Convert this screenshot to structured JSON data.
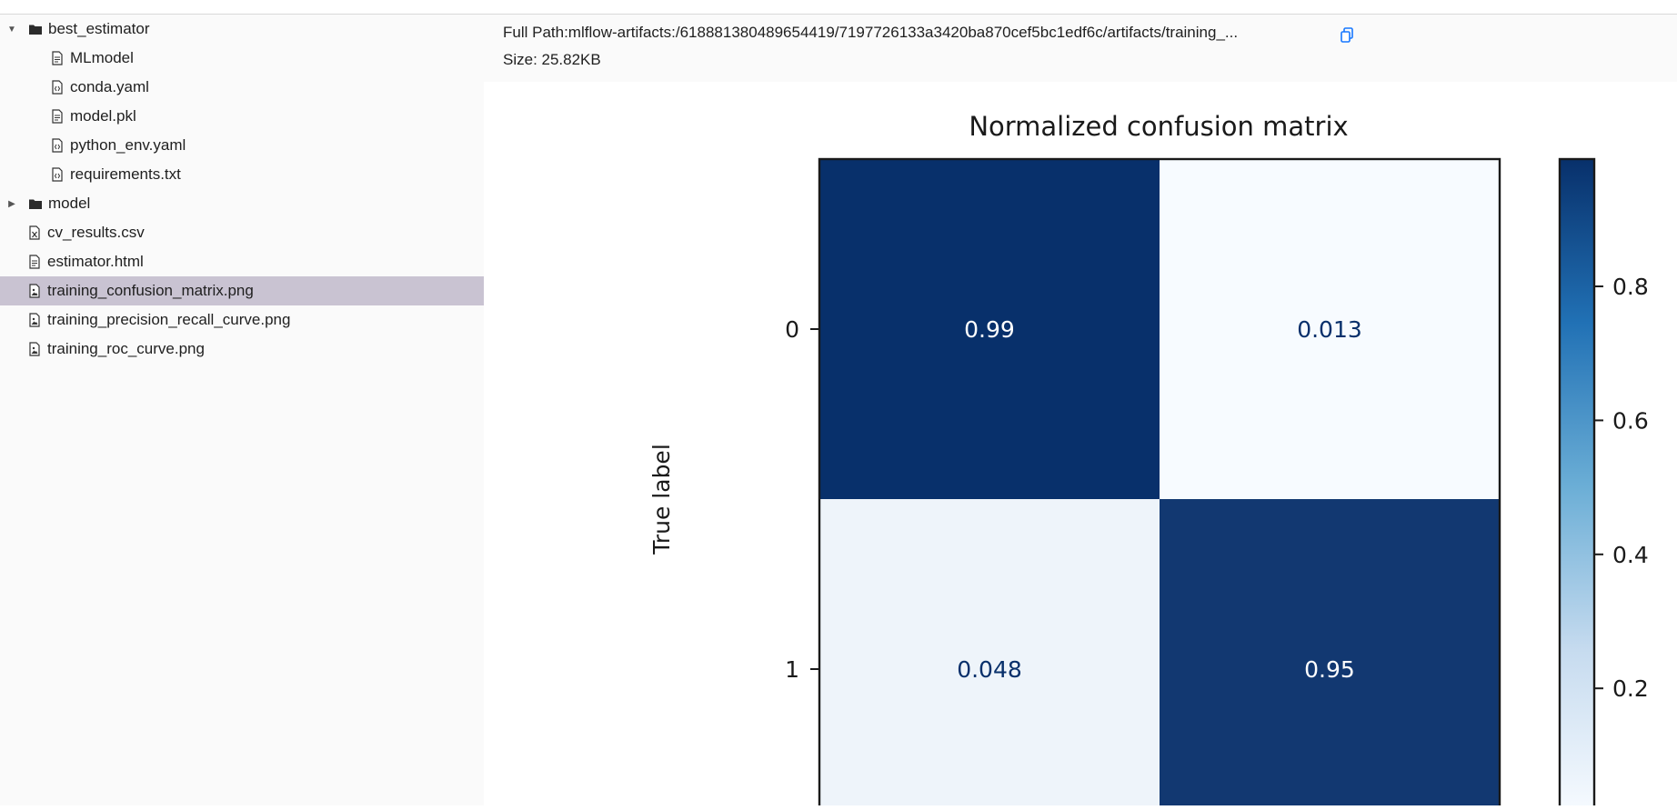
{
  "tree": [
    {
      "label": "best_estimator",
      "kind": "folder",
      "depth": 0,
      "expander": "expanded",
      "icon": "folder-icon"
    },
    {
      "label": "MLmodel",
      "kind": "file",
      "depth": 1,
      "icon": "file-text-icon"
    },
    {
      "label": "conda.yaml",
      "kind": "file",
      "depth": 1,
      "icon": "file-code-icon"
    },
    {
      "label": "model.pkl",
      "kind": "file",
      "depth": 1,
      "icon": "file-text-icon"
    },
    {
      "label": "python_env.yaml",
      "kind": "file",
      "depth": 1,
      "icon": "file-code-icon"
    },
    {
      "label": "requirements.txt",
      "kind": "file",
      "depth": 1,
      "icon": "file-code-icon"
    },
    {
      "label": "model",
      "kind": "folder",
      "depth": 0,
      "expander": "collapsed",
      "icon": "folder-icon"
    },
    {
      "label": "cv_results.csv",
      "kind": "file",
      "depth": 0,
      "icon": "file-excel-icon"
    },
    {
      "label": "estimator.html",
      "kind": "file",
      "depth": 0,
      "icon": "file-text-icon"
    },
    {
      "label": "training_confusion_matrix.png",
      "kind": "file",
      "depth": 0,
      "icon": "file-image-icon",
      "selected": true
    },
    {
      "label": "training_precision_recall_curve.png",
      "kind": "file",
      "depth": 0,
      "icon": "file-image-icon"
    },
    {
      "label": "training_roc_curve.png",
      "kind": "file",
      "depth": 0,
      "icon": "file-image-icon"
    }
  ],
  "artifact": {
    "full_path": "Full Path:mlflow-artifacts:/618881380489654419/7197726133a3420ba870cef5bc1edf6c/artifacts/training_...",
    "size": "Size: 25.82KB",
    "copy_icon": "copy-icon"
  },
  "chart_data": {
    "type": "heatmap",
    "title": "Normalized confusion matrix",
    "ylabel": "True label",
    "xlabel": "",
    "row_labels": [
      "0",
      "1"
    ],
    "col_labels": [],
    "values": [
      [
        0.99,
        0.013
      ],
      [
        0.048,
        0.95
      ]
    ],
    "value_labels": [
      [
        "0.99",
        "0.013"
      ],
      [
        "0.048",
        "0.95"
      ]
    ],
    "colormap": "Blues",
    "colorbar": {
      "ticks": [
        0.8,
        0.6,
        0.4,
        0.2
      ],
      "tick_labels": [
        "0.8",
        "0.6",
        "0.4",
        "0.2"
      ],
      "range": [
        0.013,
        0.99
      ]
    },
    "colors": {
      "dark": "#08306b",
      "light": "#f7fbff",
      "text_on_dark": "#ffffff",
      "text_on_light": "#08306b"
    }
  }
}
